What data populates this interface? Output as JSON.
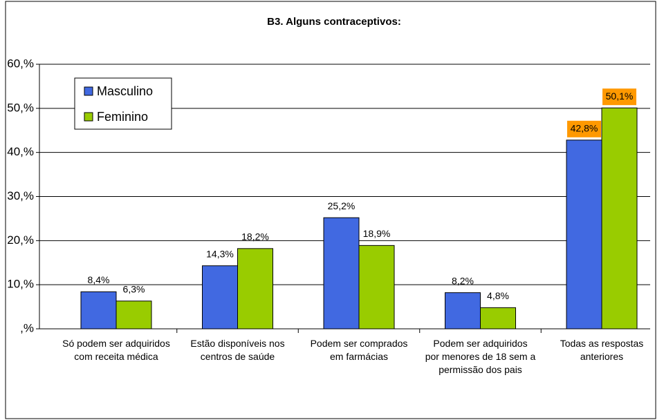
{
  "chart_data": {
    "type": "bar",
    "title": "B3. Alguns contraceptivos:",
    "categories": [
      "Só podem ser adquiridos com receita médica",
      "Estão disponíveis nos centros de saúde",
      "Podem ser comprados em farmácias",
      "Podem ser adquiridos por menores de 18 sem a permissão dos pais",
      "Todas as respostas anteriores"
    ],
    "series": [
      {
        "name": "Masculino",
        "color": "#4169e1",
        "values": [
          8.4,
          14.3,
          25.2,
          8.2,
          42.8
        ],
        "value_labels": [
          "8,4%",
          "14,3%",
          "25,2%",
          "8,2%",
          "42,8%"
        ]
      },
      {
        "name": "Feminino",
        "color": "#99cc00",
        "values": [
          6.3,
          18.2,
          18.9,
          4.8,
          50.1
        ],
        "value_labels": [
          "6,3%",
          "18,2%",
          "18,9%",
          "4,8%",
          "50,1%"
        ]
      }
    ],
    "ylim": [
      0,
      60
    ],
    "yticks": [
      {
        "value": 0,
        "label": ",%"
      },
      {
        "value": 10,
        "label": "10,%"
      },
      {
        "value": 20,
        "label": "20,%"
      },
      {
        "value": 30,
        "label": "30,%"
      },
      {
        "value": 40,
        "label": "40,%"
      },
      {
        "value": 50,
        "label": "50,%"
      },
      {
        "value": 60,
        "label": "60,%"
      }
    ],
    "grid": true,
    "legend": "upper left",
    "label_highlight": {
      "categories": [
        4
      ],
      "color": "#ff9900"
    }
  }
}
